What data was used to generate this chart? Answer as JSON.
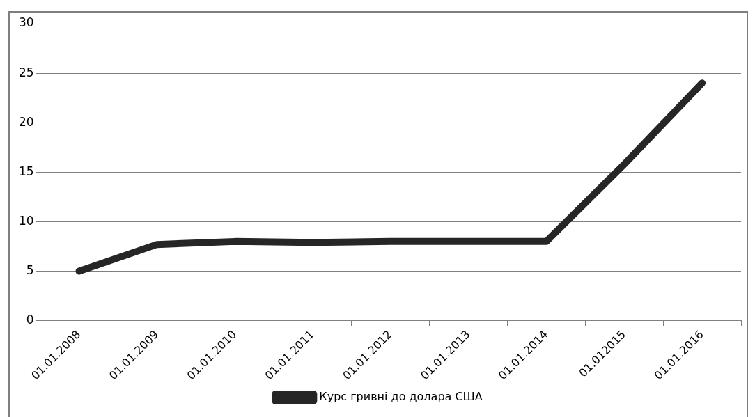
{
  "chart_data": {
    "type": "line",
    "categories": [
      "01.01.2008",
      "01.01.2009",
      "01.01.2010",
      "01.01.2011",
      "01.01.2012",
      "01.01.2013",
      "01.01.2014",
      "01.012015",
      "01.01.2016"
    ],
    "series": [
      {
        "name": "Курс гривні до долара США",
        "color": "#262626",
        "values": [
          5,
          7.7,
          8.0,
          7.9,
          8.0,
          8.0,
          8.0,
          15.8,
          24.0
        ]
      }
    ],
    "ylim": [
      0,
      30
    ],
    "yticks": [
      0,
      5,
      10,
      15,
      20,
      25,
      30
    ],
    "grid": "y",
    "legend": "bottom",
    "marker": "none",
    "line_style": "solid"
  }
}
